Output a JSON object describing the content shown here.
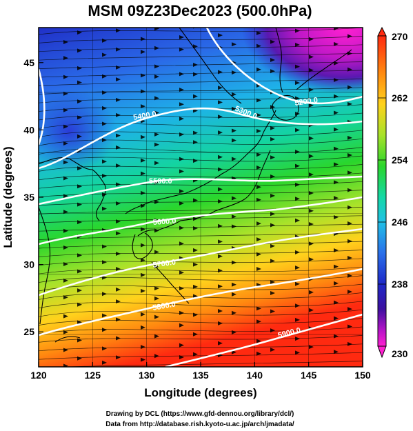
{
  "title": "MSM 09Z23Dec2023 (500.0hPa)",
  "chart_data": {
    "type": "map",
    "x_label": "Longitude (degrees)",
    "y_label": "Latitude  (degrees)",
    "x_ticks": [
      "120",
      "125",
      "130",
      "135",
      "140",
      "145",
      "150"
    ],
    "y_ticks": [
      "25",
      "30",
      "35",
      "40",
      "45"
    ],
    "x_range": [
      120,
      150
    ],
    "y_range": [
      22.4,
      47.6
    ],
    "colorbar": {
      "min": 230,
      "max": 270,
      "tick_labels": [
        "270",
        "262",
        "254",
        "246",
        "238",
        "230"
      ],
      "colors": [
        "#ff2a10",
        "#ff8a10",
        "#ffd21c",
        "#a8e22a",
        "#2ad62c",
        "#14d8a6",
        "#20c0e6",
        "#2a70ea",
        "#1e28c8",
        "#3c10a0",
        "#b814c8",
        "#ff20d0"
      ]
    },
    "contours": [
      {
        "label": "5200.0"
      },
      {
        "label": "5300.0"
      },
      {
        "label": "5400.0"
      },
      {
        "label": "5500.0"
      },
      {
        "label": "5600.0"
      },
      {
        "label": "5700.0"
      },
      {
        "label": "5800.0"
      },
      {
        "label": "5900.0"
      }
    ]
  },
  "credits": {
    "line1": "Drawing by DCL (https://www.gfd-dennou.org/library/dcl/)",
    "line2": "Data from http://database.rish.kyoto-u.ac.jp/arch/jmadata/"
  }
}
